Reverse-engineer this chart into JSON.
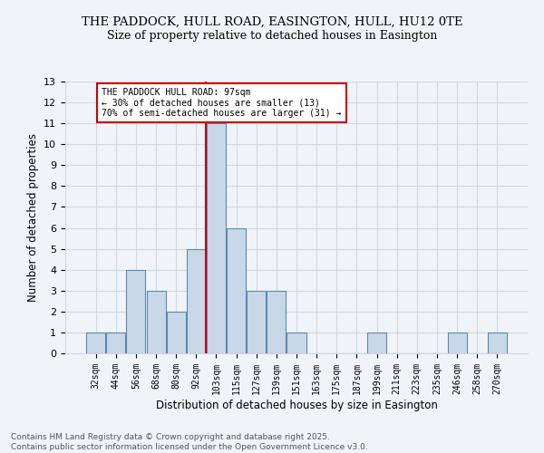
{
  "title1": "THE PADDOCK, HULL ROAD, EASINGTON, HULL, HU12 0TE",
  "title2": "Size of property relative to detached houses in Easington",
  "xlabel": "Distribution of detached houses by size in Easington",
  "ylabel": "Number of detached properties",
  "footnote1": "Contains HM Land Registry data © Crown copyright and database right 2025.",
  "footnote2": "Contains public sector information licensed under the Open Government Licence v3.0.",
  "categories": [
    "32sqm",
    "44sqm",
    "56sqm",
    "68sqm",
    "80sqm",
    "92sqm",
    "103sqm",
    "115sqm",
    "127sqm",
    "139sqm",
    "151sqm",
    "163sqm",
    "175sqm",
    "187sqm",
    "199sqm",
    "211sqm",
    "223sqm",
    "235sqm",
    "246sqm",
    "258sqm",
    "270sqm"
  ],
  "values": [
    1,
    1,
    4,
    3,
    2,
    5,
    11,
    6,
    3,
    3,
    1,
    0,
    0,
    0,
    1,
    0,
    0,
    0,
    1,
    0,
    1
  ],
  "bar_color": "#c8d8e8",
  "bar_edge_color": "#5a8ab0",
  "vline_x": 5.5,
  "vline_color": "#cc0000",
  "annotation_title": "THE PADDOCK HULL ROAD: 97sqm",
  "annotation_line1": "← 30% of detached houses are smaller (13)",
  "annotation_line2": "70% of semi-detached houses are larger (31) →",
  "annotation_box_color": "#ffffff",
  "annotation_box_edge": "#cc0000",
  "ylim": [
    0,
    13
  ],
  "yticks": [
    0,
    1,
    2,
    3,
    4,
    5,
    6,
    7,
    8,
    9,
    10,
    11,
    12,
    13
  ],
  "grid_color": "#d0d8e0",
  "background_color": "#f0f4f8"
}
